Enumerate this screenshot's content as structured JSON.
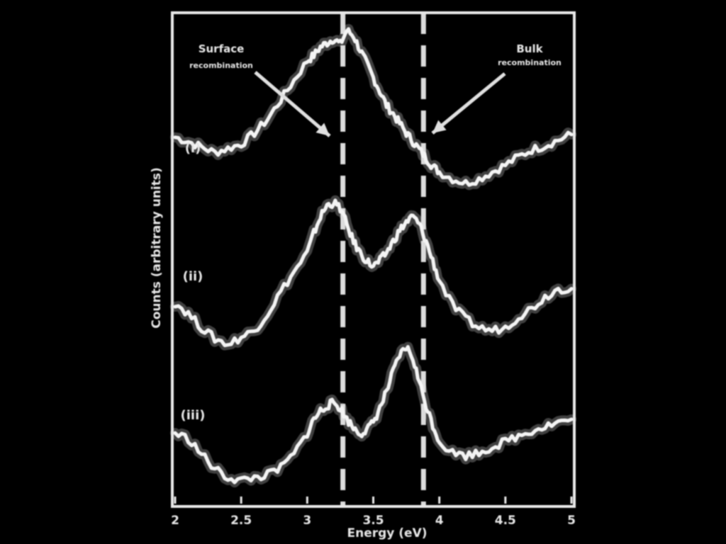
{
  "chart_data": {
    "type": "line",
    "title": "",
    "xlabel": "Energy (eV)",
    "ylabel": "Counts (arbitrary units)",
    "xlim": [
      2,
      5
    ],
    "x_ticks": [
      "2",
      "2.5",
      "3",
      "3.5",
      "4",
      "4.5",
      "5"
    ],
    "reference_lines": [
      3.27,
      3.88
    ],
    "annotations": [
      {
        "text_line1": "Surface",
        "text_line2": "recombination",
        "points_to_x": 3.2
      },
      {
        "text_line1": "Bulk",
        "text_line2": "recombination",
        "points_to_x": 3.95
      }
    ],
    "series": [
      {
        "name": "",
        "curve_label": "(i)",
        "offset": 2,
        "x": [
          2.0,
          2.1,
          2.2,
          2.3,
          2.4,
          2.5,
          2.6,
          2.7,
          2.8,
          2.9,
          3.0,
          3.05,
          3.1,
          3.15,
          3.2,
          3.25,
          3.3,
          3.35,
          3.4,
          3.45,
          3.5,
          3.55,
          3.6,
          3.65,
          3.7,
          3.75,
          3.8,
          3.85,
          3.9,
          3.95,
          4.0,
          4.1,
          4.2,
          4.3,
          4.4,
          4.5,
          4.6,
          4.7,
          4.8,
          4.9,
          5.0
        ],
        "y": [
          0.45,
          0.42,
          0.38,
          0.34,
          0.37,
          0.4,
          0.48,
          0.58,
          0.72,
          0.86,
          1.0,
          1.04,
          1.1,
          1.13,
          1.16,
          1.12,
          1.22,
          1.18,
          1.08,
          0.98,
          0.88,
          0.78,
          0.68,
          0.62,
          0.55,
          0.48,
          0.42,
          0.36,
          0.3,
          0.24,
          0.2,
          0.15,
          0.12,
          0.15,
          0.2,
          0.25,
          0.31,
          0.36,
          0.39,
          0.43,
          0.47
        ]
      },
      {
        "name": "",
        "curve_label": "(ii)",
        "offset": 1,
        "x": [
          2.0,
          2.1,
          2.2,
          2.3,
          2.4,
          2.5,
          2.6,
          2.7,
          2.8,
          2.9,
          3.0,
          3.05,
          3.1,
          3.15,
          3.2,
          3.25,
          3.3,
          3.35,
          3.4,
          3.45,
          3.5,
          3.55,
          3.6,
          3.65,
          3.7,
          3.75,
          3.8,
          3.85,
          3.9,
          3.95,
          4.0,
          4.1,
          4.2,
          4.3,
          4.4,
          4.5,
          4.6,
          4.7,
          4.8,
          4.9,
          5.0
        ],
        "y": [
          0.3,
          0.22,
          0.12,
          0.04,
          0.0,
          0.05,
          0.1,
          0.22,
          0.38,
          0.52,
          0.66,
          0.8,
          0.92,
          1.0,
          1.02,
          0.98,
          0.86,
          0.74,
          0.66,
          0.6,
          0.56,
          0.6,
          0.66,
          0.74,
          0.82,
          0.88,
          0.92,
          0.86,
          0.74,
          0.6,
          0.46,
          0.28,
          0.18,
          0.12,
          0.1,
          0.12,
          0.2,
          0.26,
          0.34,
          0.4,
          0.4
        ]
      },
      {
        "name": "",
        "curve_label": "(iii)",
        "offset": 0,
        "x": [
          2.0,
          2.1,
          2.2,
          2.3,
          2.4,
          2.5,
          2.6,
          2.7,
          2.8,
          2.9,
          3.0,
          3.05,
          3.1,
          3.15,
          3.2,
          3.25,
          3.3,
          3.35,
          3.4,
          3.45,
          3.5,
          3.55,
          3.6,
          3.65,
          3.7,
          3.75,
          3.8,
          3.85,
          3.9,
          3.95,
          4.0,
          4.1,
          4.2,
          4.3,
          4.4,
          4.5,
          4.6,
          4.7,
          4.8,
          4.9,
          5.0
        ],
        "y": [
          0.4,
          0.36,
          0.25,
          0.14,
          0.08,
          0.06,
          0.08,
          0.1,
          0.15,
          0.25,
          0.4,
          0.5,
          0.56,
          0.6,
          0.62,
          0.58,
          0.5,
          0.44,
          0.4,
          0.42,
          0.48,
          0.58,
          0.7,
          0.84,
          0.96,
          1.02,
          0.94,
          0.76,
          0.6,
          0.46,
          0.34,
          0.26,
          0.24,
          0.26,
          0.3,
          0.34,
          0.38,
          0.42,
          0.45,
          0.48,
          0.5
        ]
      }
    ]
  }
}
